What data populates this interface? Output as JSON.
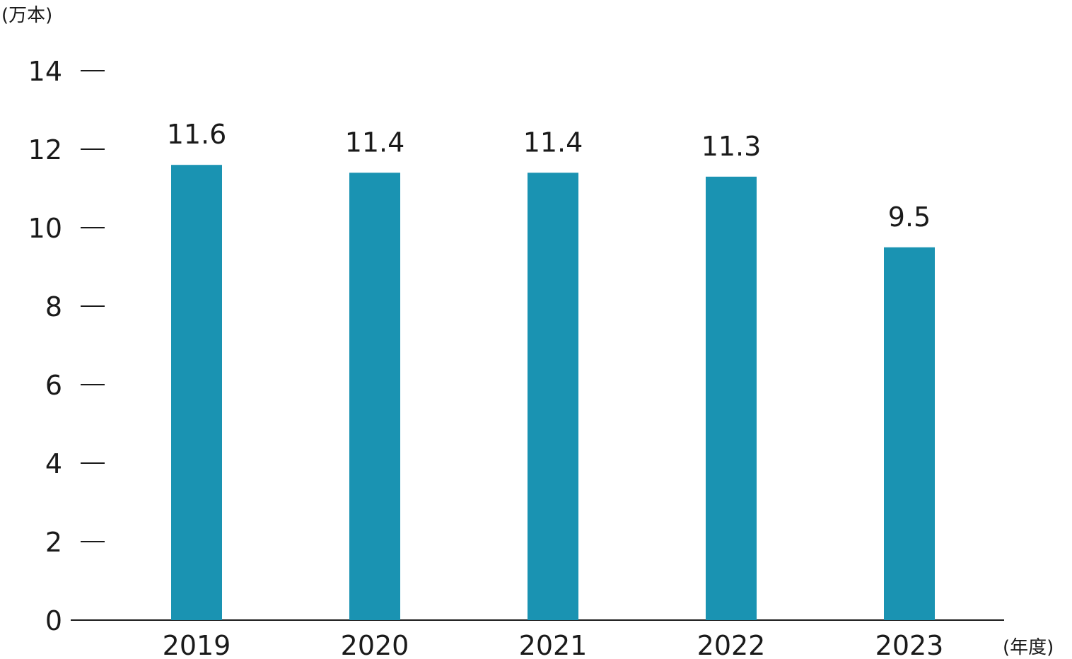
{
  "chart_data": {
    "type": "bar",
    "categories": [
      "2019",
      "2020",
      "2021",
      "2022",
      "2023"
    ],
    "values": [
      11.6,
      11.4,
      11.4,
      11.3,
      9.5
    ],
    "value_labels": [
      "11.6",
      "11.4",
      "11.4",
      "11.3",
      "9.5"
    ],
    "y_unit": "(万本)",
    "x_unit": "(年度)",
    "y_ticks": [
      0,
      2,
      4,
      6,
      8,
      10,
      12,
      14
    ],
    "ylim": [
      0,
      14
    ],
    "bar_color": "#1a93b2",
    "grid": false
  }
}
